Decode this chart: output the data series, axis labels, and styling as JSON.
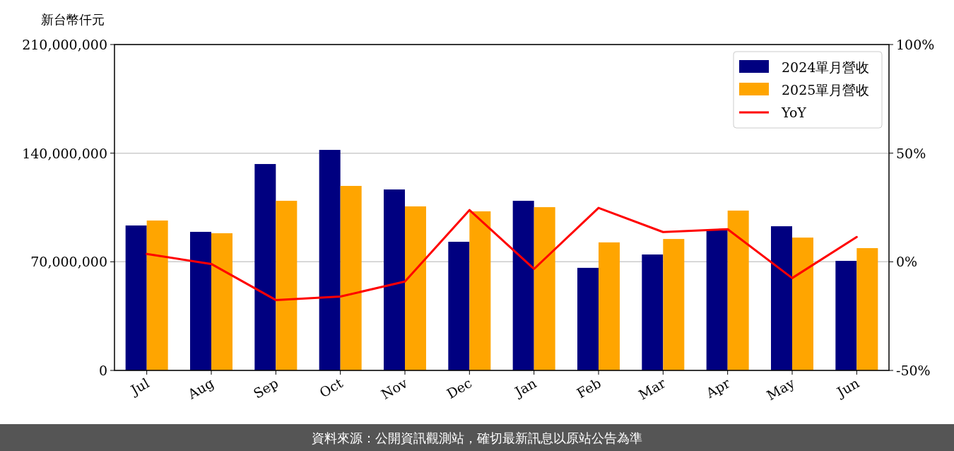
{
  "chart_data": {
    "type": "bar",
    "ylabel": "新台幣仟元",
    "categories": [
      "Jul",
      "Aug",
      "Sep",
      "Oct",
      "Nov",
      "Dec",
      "Jan",
      "Feb",
      "Mar",
      "Apr",
      "May",
      "Jun"
    ],
    "series": [
      {
        "name": "2024單月營收",
        "color": "#000080",
        "values": [
          93400000,
          89300000,
          133000000,
          142100000,
          116600000,
          82900000,
          109300000,
          66100000,
          74700000,
          90200000,
          92900000,
          70600000
        ]
      },
      {
        "name": "2025單月營收",
        "color": "#ffa500",
        "values": [
          96600000,
          88400000,
          109300000,
          118900000,
          105700000,
          102500000,
          105200000,
          82500000,
          84700000,
          103000000,
          85600000,
          78800000
        ]
      },
      {
        "name": "YoY",
        "type": "line",
        "axis": "y2",
        "color": "#ff0000",
        "values": [
          3.6,
          -1,
          -17.6,
          -16,
          -9.1,
          23.8,
          -3.3,
          24.8,
          13.7,
          15,
          -7.5,
          11.4
        ]
      }
    ],
    "ylim": [
      0,
      210000000
    ],
    "yticks": [
      {
        "value": 0,
        "label": "0"
      },
      {
        "value": 70000000,
        "label": "70,000,000"
      },
      {
        "value": 140000000,
        "label": "140,000,000"
      },
      {
        "value": 210000000,
        "label": "210,000,000"
      }
    ],
    "y2lim": [
      -50,
      100
    ],
    "y2ticks": [
      {
        "value": -50,
        "label": "-50%"
      },
      {
        "value": 0,
        "label": "0%"
      },
      {
        "value": 50,
        "label": "50%"
      },
      {
        "value": 100,
        "label": "100%"
      }
    ],
    "grid": "y",
    "legend": "top right",
    "annotations": [
      "資料來源：公開資訊觀測站，確切最新訊息以原站公告為準"
    ]
  }
}
